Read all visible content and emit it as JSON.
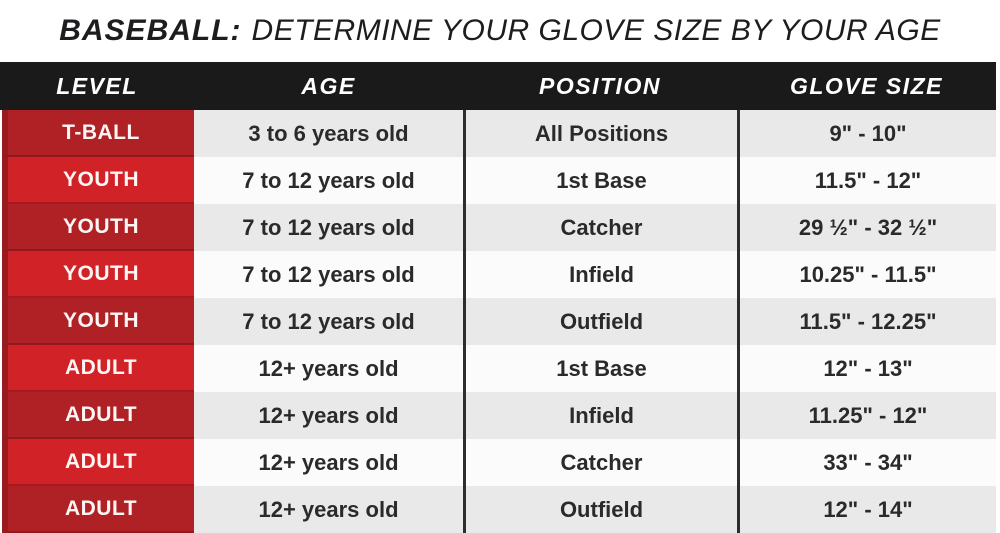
{
  "title": {
    "prefix": "BASEBALL:",
    "rest": "DETERMINE YOUR GLOVE SIZE BY YOUR AGE"
  },
  "table": {
    "columns": [
      "LEVEL",
      "AGE",
      "POSITION",
      "GLOVE SIZE"
    ],
    "rows": [
      {
        "level": "T-BALL",
        "age": "3 to 6 years old",
        "position": "All Positions",
        "glove_size": "9\" - 10\""
      },
      {
        "level": "YOUTH",
        "age": "7 to 12 years old",
        "position": "1st Base",
        "glove_size": "11.5\" - 12\""
      },
      {
        "level": "YOUTH",
        "age": "7 to 12 years old",
        "position": "Catcher",
        "glove_size": "29 ½\" - 32 ½\""
      },
      {
        "level": "YOUTH",
        "age": "7 to 12 years old",
        "position": "Infield",
        "glove_size": "10.25\" - 11.5\""
      },
      {
        "level": "YOUTH",
        "age": "7 to 12 years old",
        "position": "Outfield",
        "glove_size": "11.5\" - 12.25\""
      },
      {
        "level": "ADULT",
        "age": "12+ years old",
        "position": "1st Base",
        "glove_size": "12\" - 13\""
      },
      {
        "level": "ADULT",
        "age": "12+ years old",
        "position": "Infield",
        "glove_size": "11.25\" - 12\""
      },
      {
        "level": "ADULT",
        "age": "12+ years old",
        "position": "Catcher",
        "glove_size": "33\" - 34\""
      },
      {
        "level": "ADULT",
        "age": "12+ years old",
        "position": "Outfield",
        "glove_size": "12\" - 14\""
      }
    ]
  },
  "colors": {
    "header-bg": "#1a1a1a",
    "red-dark": "#b02125",
    "red-bright": "#d12228",
    "red-edge": "#9a1b1f",
    "cell-gray": "#e9e9e9",
    "cell-white": "#fbfbfb",
    "divider": "#2d2d2d",
    "text-dark": "#2a2a2a",
    "text-light": "#fdf6f4",
    "title-color": "#1d1d1f"
  }
}
